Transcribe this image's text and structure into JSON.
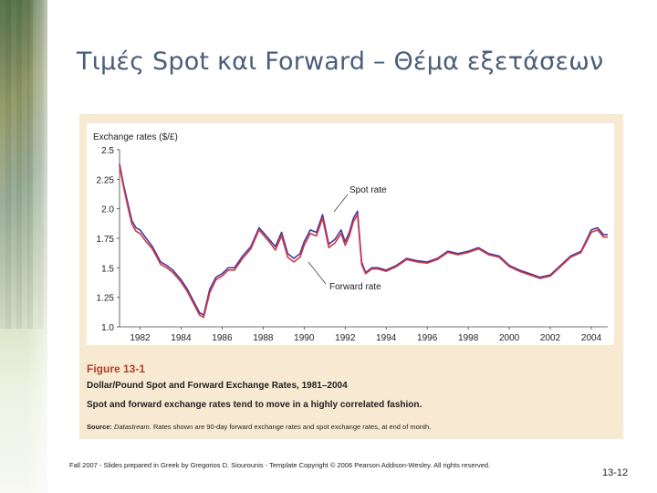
{
  "slide": {
    "title": "Τιμές Spot και Forward – Θέμα εξετάσεων",
    "footer": "Fall 2007 - Slides prepared in Greek by Gregorios D. Siourounis - Template Copyright © 2006 Pearson Addison-Wesley. All rights reserved.",
    "page_number": "13-12"
  },
  "figure": {
    "number": "Figure 13-1",
    "title": "Dollar/Pound Spot and Forward Exchange Rates, 1981–2004",
    "subtitle": "Spot and forward exchange rates tend to move in a highly correlated fashion.",
    "source_label": "Source:",
    "source_italic": "Datastream",
    "source_rest": ". Rates shown are 90-day forward exchange rates and spot exchange rates, at end of month."
  },
  "colors": {
    "title": "#4a5e7a",
    "panel_bg": "#f7e9d2",
    "figure_number": "#b0412e",
    "spot": "#3b3f98",
    "forward": "#d8344a"
  },
  "chart_data": {
    "type": "line",
    "ylabel": "Exchange rates ($/£)",
    "xlim": [
      1981,
      2004.8
    ],
    "ylim": [
      1.0,
      2.5
    ],
    "yticks": [
      1.0,
      1.25,
      1.5,
      1.75,
      2.0,
      2.25,
      2.5
    ],
    "ytick_labels": [
      "1.0",
      "1.25",
      "1.5",
      "1.75",
      "2.0",
      "2.25",
      "2.5"
    ],
    "xticks": [
      1982,
      1984,
      1986,
      1988,
      1990,
      1992,
      1994,
      1996,
      1998,
      2000,
      2002,
      2004
    ],
    "xtick_labels": [
      "1982",
      "1984",
      "1986",
      "1988",
      "1990",
      "1992",
      "1994",
      "1996",
      "1998",
      "2000",
      "2002",
      "2004"
    ],
    "grid": false,
    "annotations": [
      {
        "text": "Spot rate",
        "series": "Spot rate"
      },
      {
        "text": "Forward rate",
        "series": "Forward rate"
      }
    ],
    "series": [
      {
        "name": "Spot rate",
        "x": [
          1981.0,
          1981.2,
          1981.4,
          1981.6,
          1981.8,
          1982.0,
          1982.3,
          1982.6,
          1983.0,
          1983.3,
          1983.6,
          1984.0,
          1984.3,
          1984.6,
          1984.9,
          1985.1,
          1985.4,
          1985.7,
          1986.0,
          1986.3,
          1986.6,
          1987.0,
          1987.4,
          1987.8,
          1988.0,
          1988.3,
          1988.6,
          1988.9,
          1989.2,
          1989.5,
          1989.8,
          1990.0,
          1990.3,
          1990.6,
          1990.9,
          1991.2,
          1991.5,
          1991.8,
          1992.0,
          1992.2,
          1992.4,
          1992.6,
          1992.8,
          1993.0,
          1993.3,
          1993.6,
          1994.0,
          1994.5,
          1995.0,
          1995.5,
          1996.0,
          1996.5,
          1997.0,
          1997.5,
          1998.0,
          1998.5,
          1999.0,
          1999.5,
          2000.0,
          2000.5,
          2001.0,
          2001.5,
          2002.0,
          2002.5,
          2003.0,
          2003.5,
          2004.0,
          2004.3,
          2004.6,
          2004.8
        ],
        "y": [
          2.38,
          2.2,
          2.05,
          1.9,
          1.84,
          1.82,
          1.75,
          1.68,
          1.55,
          1.52,
          1.48,
          1.4,
          1.32,
          1.22,
          1.12,
          1.1,
          1.32,
          1.42,
          1.45,
          1.5,
          1.5,
          1.6,
          1.68,
          1.84,
          1.8,
          1.74,
          1.68,
          1.8,
          1.62,
          1.58,
          1.62,
          1.72,
          1.82,
          1.8,
          1.95,
          1.7,
          1.74,
          1.82,
          1.72,
          1.8,
          1.92,
          1.98,
          1.55,
          1.46,
          1.5,
          1.5,
          1.48,
          1.52,
          1.58,
          1.56,
          1.55,
          1.58,
          1.64,
          1.62,
          1.64,
          1.67,
          1.62,
          1.6,
          1.52,
          1.48,
          1.45,
          1.42,
          1.44,
          1.52,
          1.6,
          1.64,
          1.82,
          1.84,
          1.78,
          1.78
        ]
      },
      {
        "name": "Forward rate",
        "x": [
          1981.0,
          1981.2,
          1981.4,
          1981.6,
          1981.8,
          1982.0,
          1982.3,
          1982.6,
          1983.0,
          1983.3,
          1983.6,
          1984.0,
          1984.3,
          1984.6,
          1984.9,
          1985.1,
          1985.4,
          1985.7,
          1986.0,
          1986.3,
          1986.6,
          1987.0,
          1987.4,
          1987.8,
          1988.0,
          1988.3,
          1988.6,
          1988.9,
          1989.2,
          1989.5,
          1989.8,
          1990.0,
          1990.3,
          1990.6,
          1990.9,
          1991.2,
          1991.5,
          1991.8,
          1992.0,
          1992.2,
          1992.4,
          1992.6,
          1992.8,
          1993.0,
          1993.3,
          1993.6,
          1994.0,
          1994.5,
          1995.0,
          1995.5,
          1996.0,
          1996.5,
          1997.0,
          1997.5,
          1998.0,
          1998.5,
          1999.0,
          1999.5,
          2000.0,
          2000.5,
          2001.0,
          2001.5,
          2002.0,
          2002.5,
          2003.0,
          2003.5,
          2004.0,
          2004.3,
          2004.6,
          2004.8
        ],
        "y": [
          2.36,
          2.18,
          2.02,
          1.87,
          1.81,
          1.79,
          1.72,
          1.66,
          1.53,
          1.5,
          1.46,
          1.38,
          1.3,
          1.2,
          1.1,
          1.08,
          1.29,
          1.4,
          1.43,
          1.48,
          1.48,
          1.58,
          1.66,
          1.82,
          1.78,
          1.72,
          1.65,
          1.77,
          1.59,
          1.55,
          1.59,
          1.69,
          1.79,
          1.77,
          1.92,
          1.67,
          1.71,
          1.79,
          1.69,
          1.77,
          1.89,
          1.95,
          1.53,
          1.45,
          1.49,
          1.49,
          1.47,
          1.51,
          1.57,
          1.55,
          1.54,
          1.57,
          1.63,
          1.61,
          1.63,
          1.66,
          1.61,
          1.59,
          1.51,
          1.47,
          1.44,
          1.41,
          1.43,
          1.51,
          1.59,
          1.63,
          1.8,
          1.82,
          1.76,
          1.76
        ]
      }
    ]
  }
}
